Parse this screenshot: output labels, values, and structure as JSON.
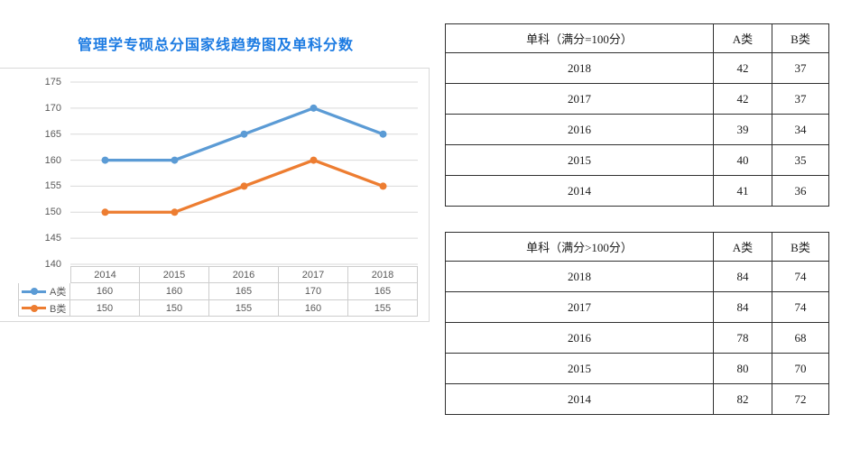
{
  "title": "管理学专硕总分国家线趋势图及单科分数",
  "colors": {
    "title": "#1C7BE2",
    "series_a": "#5B9BD5",
    "series_b": "#ED7D31",
    "gridline": "#D9D9D9",
    "chart_border": "#D9D9D9",
    "chart_table_border": "#CDCDCD",
    "axis_text": "#595959",
    "score_table_border": "#2F2F2F"
  },
  "chart_data": {
    "type": "line",
    "title": "管理学专硕总分国家线趋势图及单科分数",
    "categories": [
      "2014",
      "2015",
      "2016",
      "2017",
      "2018"
    ],
    "series": [
      {
        "name": "A类",
        "values": [
          160,
          160,
          165,
          170,
          165
        ],
        "color": "#5B9BD5"
      },
      {
        "name": "B类",
        "values": [
          150,
          150,
          155,
          160,
          155
        ],
        "color": "#ED7D31"
      }
    ],
    "xlabel": "",
    "ylabel": "",
    "ylim": [
      140,
      175
    ],
    "yticks": [
      175,
      170,
      165,
      160,
      155,
      150,
      145,
      140
    ],
    "grid": true,
    "legend_position": "data-table-left",
    "marker": "circle"
  },
  "score_tables": [
    {
      "header": [
        "单科（满分=100分）",
        "A类",
        "B类"
      ],
      "rows": [
        [
          "2018",
          "42",
          "37"
        ],
        [
          "2017",
          "42",
          "37"
        ],
        [
          "2016",
          "39",
          "34"
        ],
        [
          "2015",
          "40",
          "35"
        ],
        [
          "2014",
          "41",
          "36"
        ]
      ]
    },
    {
      "header": [
        "单科（满分>100分）",
        "A类",
        "B类"
      ],
      "rows": [
        [
          "2018",
          "84",
          "74"
        ],
        [
          "2017",
          "84",
          "74"
        ],
        [
          "2016",
          "78",
          "68"
        ],
        [
          "2015",
          "80",
          "70"
        ],
        [
          "2014",
          "82",
          "72"
        ]
      ]
    }
  ]
}
